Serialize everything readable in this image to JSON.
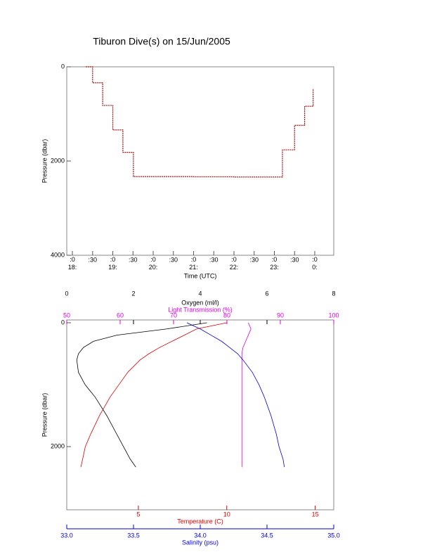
{
  "chart_data": [
    {
      "type": "line",
      "title": "Tiburon Dive(s) on 15/Jun/2005",
      "x_label": "Time (UTC)",
      "y_label": "Pressure (dbar)",
      "xlim": [
        17.86,
        24.47
      ],
      "ylim": [
        4000,
        0
      ],
      "xticks": [
        {
          "value": 18,
          "label": ":0\n18:"
        },
        {
          "value": 18.5,
          "label": ":30"
        },
        {
          "value": 19,
          "label": ":0\n19:"
        },
        {
          "value": 19.5,
          "label": ":30"
        },
        {
          "value": 20,
          "label": ":0\n20:"
        },
        {
          "value": 20.5,
          "label": ":30"
        },
        {
          "value": 21,
          "label": ":0\n21:"
        },
        {
          "value": 21.5,
          "label": ":30"
        },
        {
          "value": 22,
          "label": ":0\n22:"
        },
        {
          "value": 22.5,
          "label": ":30"
        },
        {
          "value": 23,
          "label": ":0\n23:"
        },
        {
          "value": 23.5,
          "label": ":30"
        },
        {
          "value": 24,
          "label": ":0\n0:"
        }
      ],
      "yticks": [
        0,
        2000,
        4000
      ],
      "color": "#a01010",
      "x": [
        18.33,
        18.5,
        18.75,
        19.0,
        19.25,
        19.51,
        20.0,
        21.0,
        22.0,
        22.85,
        23.2,
        23.5,
        23.75,
        23.96
      ],
      "values": [
        0,
        340,
        820,
        1340,
        1815,
        2330,
        2330,
        2335,
        2340,
        2340,
        1762,
        1242,
        838,
        460
      ]
    },
    {
      "type": "profile",
      "y_label": "Pressure (dbar)",
      "ylim": [
        3020,
        -45
      ],
      "yticks": [
        0,
        2000
      ],
      "y": [
        0,
        100,
        200,
        300,
        400,
        500,
        600,
        800,
        1000,
        1200,
        1500,
        1800,
        2000,
        2200,
        2330
      ],
      "x_axes": [
        {
          "label": "Oxygen (ml/l)",
          "color": "#000000",
          "lim": [
            0,
            8
          ],
          "ticks": [
            0,
            2,
            4,
            6,
            8
          ]
        },
        {
          "label": "Light Transmission (%)",
          "color": "#e000e0",
          "lim": [
            50,
            100
          ],
          "ticks": [
            50,
            60,
            70,
            80,
            90,
            100
          ]
        },
        {
          "label": "Temperature (C)",
          "color": "#e00000",
          "lim": [
            0.95,
            16.05
          ],
          "ticks": [
            5,
            10,
            15
          ]
        },
        {
          "label": "Salinity (psu)",
          "color": "#0000d0",
          "lim": [
            33.0,
            35.0
          ],
          "ticks": [
            {
              "value": 33,
              "label": "33.0"
            },
            {
              "value": 33.5,
              "label": "33.5"
            },
            {
              "value": 34,
              "label": "34.0"
            },
            {
              "value": 34.5,
              "label": "34.5"
            },
            {
              "value": 35,
              "label": "35.0"
            }
          ]
        }
      ],
      "series": [
        {
          "axis": 0,
          "color": "#000000",
          "values": [
            4.2,
            3.0,
            1.5,
            0.8,
            0.5,
            0.35,
            0.3,
            0.35,
            0.55,
            0.85,
            1.2,
            1.5,
            1.7,
            1.9,
            2.07
          ]
        },
        {
          "axis": 1,
          "color": "#e000e0",
          "values": [
            84,
            84.5,
            84,
            83.5,
            83,
            82.8,
            82.8,
            82.8,
            82.8,
            82.8,
            82.8,
            82.8,
            82.8,
            82.8,
            82.8
          ]
        },
        {
          "axis": 2,
          "color": "#e00000",
          "values": [
            10.0,
            8.3,
            7.6,
            6.9,
            6.2,
            5.6,
            5.1,
            4.4,
            3.9,
            3.4,
            2.8,
            2.3,
            2.0,
            1.85,
            1.75
          ]
        },
        {
          "axis": 3,
          "color": "#0000d0",
          "values": [
            33.9,
            34.0,
            34.08,
            34.16,
            34.22,
            34.28,
            34.32,
            34.39,
            34.44,
            34.48,
            34.53,
            34.57,
            34.59,
            34.62,
            34.63
          ]
        }
      ]
    }
  ]
}
